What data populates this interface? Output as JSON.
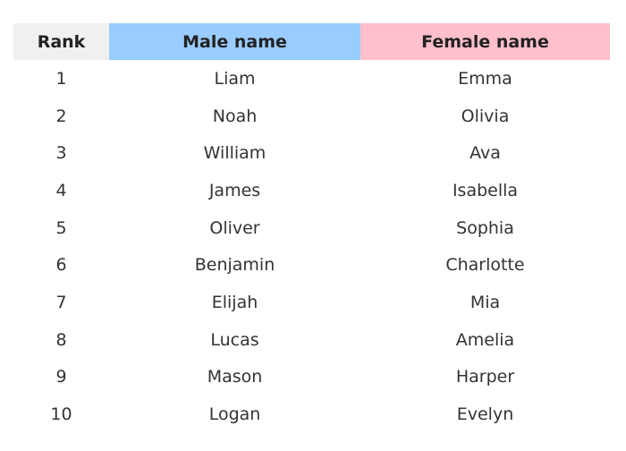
{
  "table": {
    "headers": [
      "Rank",
      "Male name",
      "Female name"
    ],
    "header_colors": [
      "#f0f0f0",
      "#99ccff",
      "#ffc0cb"
    ],
    "rows": [
      [
        "1",
        "Liam",
        "Emma"
      ],
      [
        "2",
        "Noah",
        "Olivia"
      ],
      [
        "3",
        "William",
        "Ava"
      ],
      [
        "4",
        "James",
        "Isabella"
      ],
      [
        "5",
        "Oliver",
        "Sophia"
      ],
      [
        "6",
        "Benjamin",
        "Charlotte"
      ],
      [
        "7",
        "Elijah",
        "Mia"
      ],
      [
        "8",
        "Lucas",
        "Amelia"
      ],
      [
        "9",
        "Mason",
        "Harper"
      ],
      [
        "10",
        "Logan",
        "Evelyn"
      ]
    ]
  }
}
